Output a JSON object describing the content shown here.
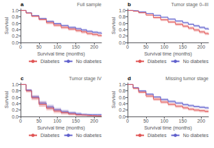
{
  "chart_data": [
    {
      "type": "step",
      "title": "Full sample",
      "annotations": [
        "a"
      ],
      "xlabel": "Survival time (months)",
      "ylabel": "Survival",
      "x": [
        0,
        15,
        30,
        50,
        70,
        90,
        110,
        130,
        150,
        165,
        180,
        195,
        210,
        220
      ],
      "series": [
        {
          "name": "Diabetes",
          "color": "#E05555",
          "values": [
            1.0,
            0.92,
            0.82,
            0.72,
            0.62,
            0.54,
            0.47,
            0.42,
            0.37,
            0.33,
            0.28,
            0.25,
            0.22,
            0.2
          ],
          "upper": [
            1.0,
            0.94,
            0.85,
            0.76,
            0.67,
            0.59,
            0.52,
            0.47,
            0.42,
            0.38,
            0.33,
            0.3,
            0.27,
            0.25
          ],
          "lower": [
            1.0,
            0.9,
            0.79,
            0.68,
            0.57,
            0.49,
            0.42,
            0.37,
            0.32,
            0.28,
            0.23,
            0.2,
            0.17,
            0.15
          ]
        },
        {
          "name": "No diabetes",
          "color": "#6060CC",
          "values": [
            1.0,
            0.93,
            0.84,
            0.75,
            0.66,
            0.59,
            0.53,
            0.47,
            0.43,
            0.39,
            0.35,
            0.32,
            0.3,
            0.27
          ],
          "upper": [
            1.0,
            0.94,
            0.86,
            0.77,
            0.69,
            0.62,
            0.56,
            0.51,
            0.47,
            0.43,
            0.39,
            0.36,
            0.34,
            0.31
          ],
          "lower": [
            1.0,
            0.92,
            0.82,
            0.73,
            0.63,
            0.56,
            0.5,
            0.43,
            0.39,
            0.35,
            0.31,
            0.28,
            0.26,
            0.23
          ]
        }
      ],
      "xlim": [
        0,
        220
      ],
      "ylim": [
        0.0,
        1.05
      ],
      "xticks": [
        0,
        50,
        100,
        150,
        200
      ],
      "yticks": [
        {
          "value": 0.0,
          "label": "0.0"
        },
        0.2,
        0.4,
        0.6,
        0.8,
        {
          "value": 1.0,
          "label": "1.0"
        }
      ],
      "grid": false,
      "legend": "bottom"
    },
    {
      "type": "step",
      "title": "Tumor stage 0–III",
      "annotations": [
        "b"
      ],
      "xlabel": "Survival time (months)",
      "ylabel": "Survival",
      "x": [
        0,
        15,
        30,
        50,
        70,
        90,
        110,
        130,
        150,
        165,
        180,
        195,
        210,
        220
      ],
      "series": [
        {
          "name": "Diabetes",
          "color": "#E05555",
          "values": [
            1.0,
            0.98,
            0.93,
            0.86,
            0.78,
            0.71,
            0.64,
            0.57,
            0.51,
            0.45,
            0.39,
            0.33,
            0.28,
            0.25
          ],
          "upper": [
            1.0,
            0.99,
            0.95,
            0.89,
            0.82,
            0.75,
            0.68,
            0.62,
            0.56,
            0.5,
            0.44,
            0.38,
            0.33,
            0.3
          ],
          "lower": [
            1.0,
            0.97,
            0.91,
            0.83,
            0.74,
            0.67,
            0.6,
            0.52,
            0.46,
            0.4,
            0.34,
            0.28,
            0.23,
            0.2
          ]
        },
        {
          "name": "No diabetes",
          "color": "#6060CC",
          "values": [
            1.0,
            0.99,
            0.96,
            0.91,
            0.85,
            0.79,
            0.73,
            0.67,
            0.62,
            0.57,
            0.52,
            0.47,
            0.43,
            0.4
          ],
          "upper": [
            1.0,
            0.99,
            0.97,
            0.92,
            0.87,
            0.81,
            0.76,
            0.7,
            0.65,
            0.6,
            0.56,
            0.51,
            0.47,
            0.44
          ],
          "lower": [
            1.0,
            0.98,
            0.95,
            0.9,
            0.83,
            0.77,
            0.7,
            0.64,
            0.59,
            0.54,
            0.48,
            0.43,
            0.39,
            0.36
          ]
        }
      ],
      "xlim": [
        0,
        220
      ],
      "ylim": [
        0.0,
        1.05
      ],
      "xticks": [
        0,
        50,
        100,
        150,
        200
      ],
      "yticks": [
        {
          "value": 0.0,
          "label": "0.0"
        },
        0.2,
        0.4,
        0.6,
        0.8,
        {
          "value": 1.0,
          "label": "1.0"
        }
      ],
      "grid": false,
      "legend": "bottom"
    },
    {
      "type": "step",
      "title": "Tumor stage IV",
      "annotations": [
        "c"
      ],
      "xlabel": "Survival time (months)",
      "ylabel": "Survival",
      "x": [
        0,
        15,
        30,
        50,
        70,
        90,
        110,
        130,
        150,
        165,
        180,
        195,
        210,
        220
      ],
      "series": [
        {
          "name": "Diabetes",
          "color": "#E05555",
          "values": [
            1.0,
            0.8,
            0.58,
            0.38,
            0.26,
            0.17,
            0.12,
            0.08,
            0.05,
            0.04,
            0.03,
            0.02,
            0.02,
            0.02
          ],
          "upper": [
            1.0,
            0.85,
            0.65,
            0.46,
            0.33,
            0.24,
            0.18,
            0.13,
            0.09,
            0.07,
            0.06,
            0.05,
            0.05,
            0.05
          ],
          "lower": [
            1.0,
            0.75,
            0.51,
            0.3,
            0.19,
            0.1,
            0.06,
            0.03,
            0.01,
            0.01,
            0.0,
            0.0,
            0.0,
            0.0
          ]
        },
        {
          "name": "No diabetes",
          "color": "#6060CC",
          "values": [
            1.0,
            0.82,
            0.61,
            0.42,
            0.3,
            0.21,
            0.15,
            0.11,
            0.08,
            0.06,
            0.05,
            0.05,
            0.05,
            0.05
          ],
          "upper": [
            1.0,
            0.86,
            0.67,
            0.49,
            0.37,
            0.27,
            0.21,
            0.16,
            0.13,
            0.1,
            0.09,
            0.09,
            0.09,
            0.09
          ],
          "lower": [
            1.0,
            0.78,
            0.55,
            0.35,
            0.23,
            0.15,
            0.09,
            0.06,
            0.03,
            0.02,
            0.01,
            0.01,
            0.01,
            0.01
          ]
        }
      ],
      "xlim": [
        0,
        220
      ],
      "ylim": [
        0.0,
        1.05
      ],
      "xticks": [
        0,
        50,
        100,
        150,
        200
      ],
      "yticks": [
        {
          "value": 0.0,
          "label": "0.0"
        },
        0.2,
        0.4,
        0.6,
        0.8,
        {
          "value": 1.0,
          "label": "1.0"
        }
      ],
      "grid": false,
      "legend": "bottom"
    },
    {
      "type": "step",
      "title": "Missing tumor stage",
      "annotations": [
        "d"
      ],
      "xlabel": "Survival time (months)",
      "ylabel": "Survival",
      "x": [
        0,
        15,
        30,
        50,
        70,
        90,
        110,
        130,
        150,
        165,
        180,
        195,
        210,
        220
      ],
      "series": [
        {
          "name": "Diabetes",
          "color": "#E05555",
          "values": [
            1.0,
            0.88,
            0.76,
            0.64,
            0.54,
            0.45,
            0.38,
            0.32,
            0.27,
            0.23,
            0.2,
            0.18,
            0.16,
            0.15
          ],
          "upper": [
            1.0,
            0.91,
            0.8,
            0.69,
            0.59,
            0.5,
            0.43,
            0.37,
            0.32,
            0.28,
            0.25,
            0.23,
            0.21,
            0.2
          ],
          "lower": [
            1.0,
            0.85,
            0.72,
            0.59,
            0.49,
            0.4,
            0.33,
            0.27,
            0.22,
            0.18,
            0.15,
            0.13,
            0.11,
            0.1
          ]
        },
        {
          "name": "No diabetes",
          "color": "#6060CC",
          "values": [
            1.0,
            0.9,
            0.8,
            0.7,
            0.61,
            0.53,
            0.47,
            0.42,
            0.37,
            0.34,
            0.31,
            0.29,
            0.27,
            0.25
          ],
          "upper": [
            1.0,
            0.92,
            0.83,
            0.73,
            0.64,
            0.57,
            0.51,
            0.46,
            0.41,
            0.38,
            0.35,
            0.33,
            0.31,
            0.29
          ],
          "lower": [
            1.0,
            0.88,
            0.77,
            0.67,
            0.58,
            0.49,
            0.43,
            0.38,
            0.33,
            0.3,
            0.27,
            0.25,
            0.23,
            0.21
          ]
        }
      ],
      "xlim": [
        0,
        220
      ],
      "ylim": [
        0.0,
        1.05
      ],
      "xticks": [
        0,
        50,
        100,
        150,
        200
      ],
      "yticks": [
        {
          "value": 0.0,
          "label": "0.0"
        },
        0.2,
        0.4,
        0.6,
        0.8,
        {
          "value": 1.0,
          "label": "1.0"
        }
      ],
      "grid": false,
      "legend": "bottom"
    }
  ]
}
